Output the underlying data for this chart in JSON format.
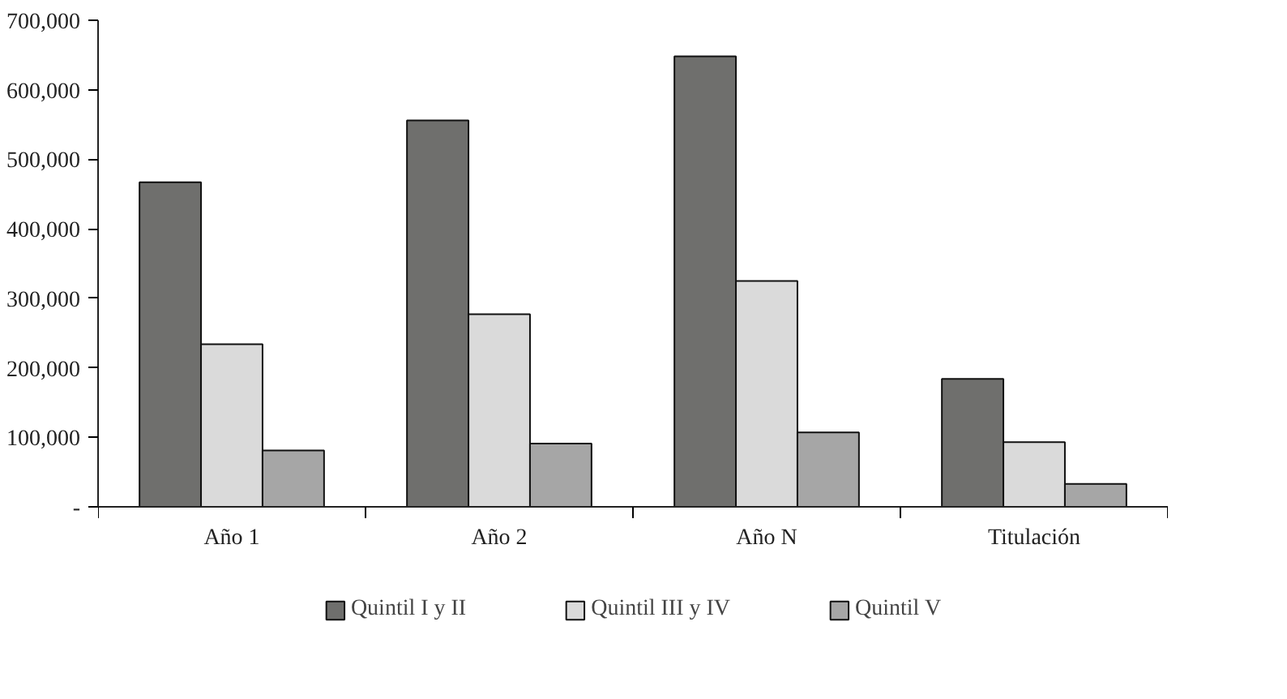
{
  "chart_data": {
    "type": "bar",
    "categories": [
      "Año 1",
      "Año 2",
      "Año N",
      "Titulación"
    ],
    "series": [
      {
        "name": "Quintil I y II",
        "color": "#6f6f6d",
        "values": [
          467000,
          556000,
          648000,
          184000
        ]
      },
      {
        "name": "Quintil III y IV",
        "color": "#dadada",
        "values": [
          234000,
          277000,
          325000,
          93000
        ]
      },
      {
        "name": "Quintil V",
        "color": "#a6a6a6",
        "values": [
          81000,
          91000,
          107000,
          33000
        ]
      }
    ],
    "ylim": [
      0,
      700000
    ],
    "yticks": [
      {
        "value": 0,
        "label": "-"
      },
      {
        "value": 100000,
        "label": "100,000"
      },
      {
        "value": 200000,
        "label": "200,000"
      },
      {
        "value": 300000,
        "label": "300,000"
      },
      {
        "value": 400000,
        "label": "400,000"
      },
      {
        "value": 500000,
        "label": "500,000"
      },
      {
        "value": 600000,
        "label": "600,000"
      },
      {
        "value": 700000,
        "label": "700,000"
      }
    ],
    "grid": false,
    "legend": "bottom"
  }
}
